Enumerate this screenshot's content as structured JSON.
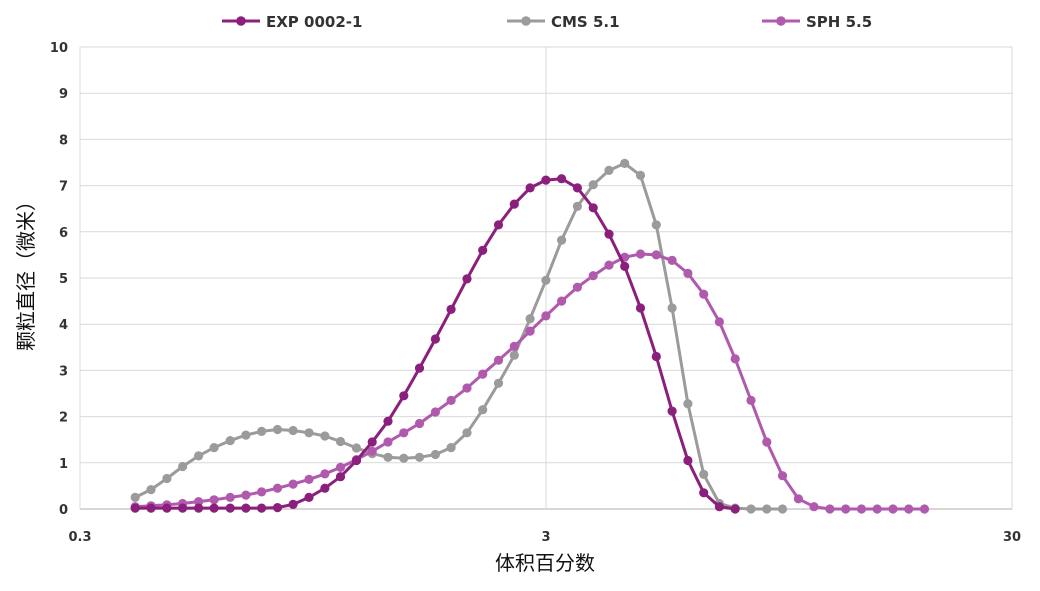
{
  "chart_data": {
    "type": "line",
    "title": "",
    "xlabel": "体积百分数",
    "ylabel": "颗粒直径（微米）",
    "xscale": "log",
    "xlim": [
      0.3,
      30
    ],
    "ylim": [
      0,
      10
    ],
    "xticks": [
      0.3,
      3,
      30
    ],
    "xtick_labels": [
      "0.3",
      "3",
      "30"
    ],
    "yticks": [
      0,
      1,
      2,
      3,
      4,
      5,
      6,
      7,
      8,
      9,
      10
    ],
    "grid": true,
    "legend_position": "top",
    "series": [
      {
        "name": "EXP 0002-1",
        "color": "#8b1f7c",
        "values": [
          [
            0.394,
            0.02
          ],
          [
            0.426,
            0.02
          ],
          [
            0.461,
            0.02
          ],
          [
            0.498,
            0.02
          ],
          [
            0.539,
            0.02
          ],
          [
            0.582,
            0.02
          ],
          [
            0.63,
            0.02
          ],
          [
            0.681,
            0.02
          ],
          [
            0.736,
            0.02
          ],
          [
            0.796,
            0.03
          ],
          [
            0.86,
            0.1
          ],
          [
            0.93,
            0.25
          ],
          [
            1.006,
            0.45
          ],
          [
            1.087,
            0.7
          ],
          [
            1.176,
            1.05
          ],
          [
            1.271,
            1.45
          ],
          [
            1.374,
            1.9
          ],
          [
            1.486,
            2.45
          ],
          [
            1.606,
            3.05
          ],
          [
            1.737,
            3.68
          ],
          [
            1.877,
            4.32
          ],
          [
            2.03,
            4.98
          ],
          [
            2.194,
            5.6
          ],
          [
            2.372,
            6.15
          ],
          [
            2.565,
            6.6
          ],
          [
            2.773,
            6.95
          ],
          [
            2.998,
            7.12
          ],
          [
            3.241,
            7.15
          ],
          [
            3.504,
            6.95
          ],
          [
            3.788,
            6.52
          ],
          [
            4.095,
            5.95
          ],
          [
            4.427,
            5.25
          ],
          [
            4.786,
            4.35
          ],
          [
            5.174,
            3.3
          ],
          [
            5.594,
            2.12
          ],
          [
            6.047,
            1.05
          ],
          [
            6.538,
            0.35
          ],
          [
            7.068,
            0.05
          ],
          [
            7.641,
            0.0
          ]
        ]
      },
      {
        "name": "CMS 5.1",
        "color": "#9b9b9b",
        "values": [
          [
            0.394,
            0.25
          ],
          [
            0.426,
            0.42
          ],
          [
            0.461,
            0.66
          ],
          [
            0.498,
            0.92
          ],
          [
            0.539,
            1.15
          ],
          [
            0.582,
            1.33
          ],
          [
            0.63,
            1.48
          ],
          [
            0.681,
            1.6
          ],
          [
            0.736,
            1.68
          ],
          [
            0.796,
            1.72
          ],
          [
            0.86,
            1.7
          ],
          [
            0.93,
            1.65
          ],
          [
            1.006,
            1.58
          ],
          [
            1.087,
            1.46
          ],
          [
            1.176,
            1.32
          ],
          [
            1.271,
            1.2
          ],
          [
            1.374,
            1.12
          ],
          [
            1.486,
            1.1
          ],
          [
            1.606,
            1.12
          ],
          [
            1.737,
            1.18
          ],
          [
            1.877,
            1.33
          ],
          [
            2.03,
            1.65
          ],
          [
            2.194,
            2.15
          ],
          [
            2.372,
            2.72
          ],
          [
            2.565,
            3.33
          ],
          [
            2.773,
            4.12
          ],
          [
            2.998,
            4.95
          ],
          [
            3.241,
            5.82
          ],
          [
            3.504,
            6.55
          ],
          [
            3.788,
            7.02
          ],
          [
            4.095,
            7.33
          ],
          [
            4.427,
            7.48
          ],
          [
            4.786,
            7.22
          ],
          [
            5.174,
            6.15
          ],
          [
            5.594,
            4.35
          ],
          [
            6.047,
            2.28
          ],
          [
            6.538,
            0.75
          ],
          [
            7.068,
            0.12
          ],
          [
            7.641,
            0.02
          ],
          [
            8.26,
            0.0
          ],
          [
            8.93,
            0.0
          ],
          [
            9.654,
            0.0
          ]
        ]
      },
      {
        "name": "SPH 5.5",
        "color": "#b05aae",
        "values": [
          [
            0.394,
            0.05
          ],
          [
            0.426,
            0.07
          ],
          [
            0.461,
            0.09
          ],
          [
            0.498,
            0.12
          ],
          [
            0.539,
            0.16
          ],
          [
            0.582,
            0.2
          ],
          [
            0.63,
            0.25
          ],
          [
            0.681,
            0.3
          ],
          [
            0.736,
            0.37
          ],
          [
            0.796,
            0.45
          ],
          [
            0.86,
            0.54
          ],
          [
            0.93,
            0.64
          ],
          [
            1.006,
            0.76
          ],
          [
            1.087,
            0.9
          ],
          [
            1.176,
            1.07
          ],
          [
            1.271,
            1.25
          ],
          [
            1.374,
            1.45
          ],
          [
            1.486,
            1.65
          ],
          [
            1.606,
            1.85
          ],
          [
            1.737,
            2.1
          ],
          [
            1.877,
            2.35
          ],
          [
            2.03,
            2.62
          ],
          [
            2.194,
            2.92
          ],
          [
            2.372,
            3.22
          ],
          [
            2.565,
            3.52
          ],
          [
            2.773,
            3.85
          ],
          [
            2.998,
            4.18
          ],
          [
            3.241,
            4.5
          ],
          [
            3.504,
            4.8
          ],
          [
            3.788,
            5.05
          ],
          [
            4.095,
            5.28
          ],
          [
            4.427,
            5.45
          ],
          [
            4.786,
            5.52
          ],
          [
            5.174,
            5.5
          ],
          [
            5.594,
            5.38
          ],
          [
            6.047,
            5.1
          ],
          [
            6.538,
            4.65
          ],
          [
            7.068,
            4.05
          ],
          [
            7.641,
            3.25
          ],
          [
            8.26,
            2.35
          ],
          [
            8.93,
            1.45
          ],
          [
            9.654,
            0.72
          ],
          [
            10.44,
            0.22
          ],
          [
            11.28,
            0.05
          ],
          [
            12.2,
            0.0
          ],
          [
            13.19,
            0.0
          ],
          [
            14.26,
            0.0
          ],
          [
            15.41,
            0.0
          ],
          [
            16.66,
            0.0
          ],
          [
            18.01,
            0.0
          ],
          [
            19.47,
            0.0
          ]
        ]
      }
    ]
  }
}
